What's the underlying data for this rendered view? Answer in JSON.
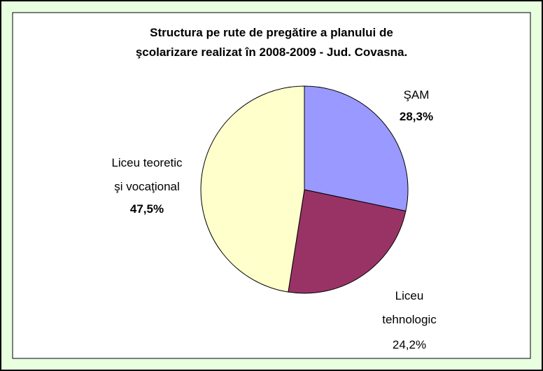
{
  "chart_data": {
    "type": "pie",
    "title": "Structura pe rute de pregătire a planului de\nşcolarizare realizat în 2008-2009 - Jud. Covasna.",
    "categories": [
      "ŞAM",
      "Liceu\ntehnologic",
      "Liceu teoretic\nşi vocaţional"
    ],
    "values": [
      28.3,
      24.2,
      47.5
    ],
    "value_labels": [
      "28,3%",
      "24,2%",
      "47,5%"
    ],
    "value_label_bold": [
      true,
      false,
      true
    ],
    "colors": [
      "#9999ff",
      "#993366",
      "#ffffcc"
    ]
  }
}
